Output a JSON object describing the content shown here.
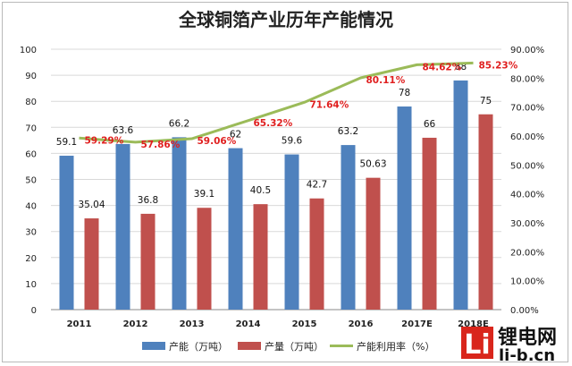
{
  "chart_data": {
    "type": "bar",
    "title": "全球铜箔产业历年产能情况",
    "categories": [
      "2011",
      "2012",
      "2013",
      "2014",
      "2015",
      "2016",
      "2017E",
      "2018E"
    ],
    "series": [
      {
        "name": "产能（万吨）",
        "type": "bar",
        "axis": "left",
        "color": "#4f81bd",
        "values": [
          59.1,
          63.6,
          66.2,
          62,
          59.6,
          63.2,
          78,
          88
        ],
        "labels": [
          "59.1",
          "63.6",
          "66.2",
          "62",
          "59.6",
          "63.2",
          "78",
          "88"
        ]
      },
      {
        "name": "产量（万吨）",
        "type": "bar",
        "axis": "left",
        "color": "#c0504d",
        "values": [
          35.04,
          36.8,
          39.1,
          40.5,
          42.7,
          50.63,
          66,
          75
        ],
        "labels": [
          "35.04",
          "36.8",
          "39.1",
          "40.5",
          "42.7",
          "50.63",
          "66",
          "75"
        ]
      },
      {
        "name": "产能利用率（%）",
        "type": "line",
        "axis": "right",
        "color": "#9bbb59",
        "values": [
          59.29,
          57.86,
          59.06,
          65.32,
          71.64,
          80.11,
          84.62,
          85.23
        ],
        "labels": [
          "59.29%",
          "57.86%",
          "59.06%",
          "65.32%",
          "71.64%",
          "80.11%",
          "84.62%",
          "85.23%"
        ]
      }
    ],
    "ylim": [
      0,
      100
    ],
    "yticks": [
      "0",
      "10",
      "20",
      "30",
      "40",
      "50",
      "60",
      "70",
      "80",
      "90",
      "100"
    ],
    "y2lim": [
      0,
      90
    ],
    "y2ticks": [
      "0.00%",
      "10.00%",
      "20.00%",
      "30.00%",
      "40.00%",
      "50.00%",
      "60.00%",
      "70.00%",
      "80.00%",
      "90.00%"
    ],
    "grid": true,
    "legend": "bottom"
  },
  "watermark": {
    "box_text": "Li",
    "name": "锂电网",
    "url": "li-b.cn"
  }
}
